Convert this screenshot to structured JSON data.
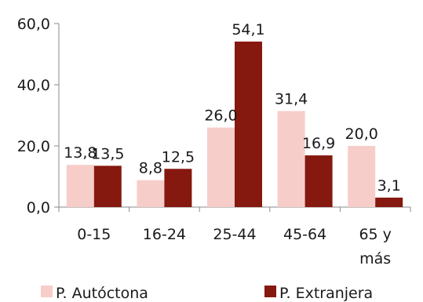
{
  "chart_data": {
    "type": "bar",
    "categories": [
      "0-15",
      "16-24",
      "25-44",
      "45-64",
      "65 y\nmás"
    ],
    "series": [
      {
        "name": "P. Autóctona",
        "values": [
          13.8,
          8.8,
          26.0,
          31.4,
          20.0
        ],
        "labels": [
          "13,8",
          "8,8",
          "26,0",
          "31,4",
          "20,0"
        ],
        "color": "#f7cdca"
      },
      {
        "name": "P. Extranjera",
        "values": [
          13.5,
          12.5,
          54.1,
          16.9,
          3.1
        ],
        "labels": [
          "13,5",
          "12,5",
          "54,1",
          "16,9",
          "3,1"
        ],
        "color": "#85190f"
      }
    ],
    "yticks": [
      "0,0",
      "20,0",
      "40,0",
      "60,0"
    ],
    "ylim": [
      0,
      60
    ],
    "grid": false,
    "legend_position": "bottom"
  }
}
